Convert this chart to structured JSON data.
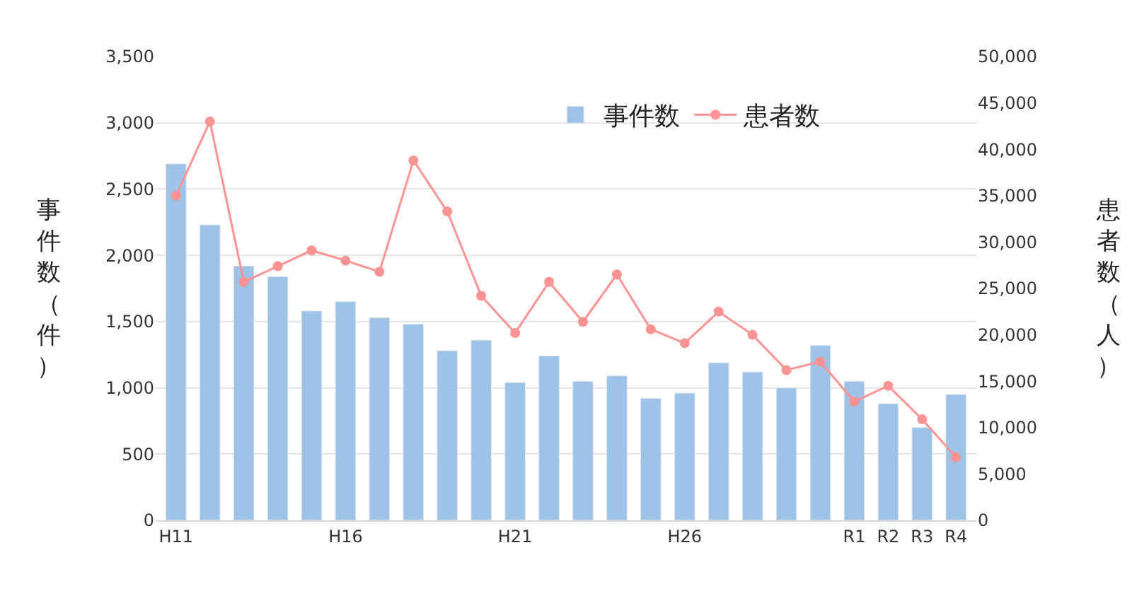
{
  "chart_data": {
    "type": "bar",
    "categories": [
      "H11",
      null,
      null,
      null,
      null,
      "H16",
      null,
      null,
      null,
      null,
      "H21",
      null,
      null,
      null,
      null,
      "H26",
      null,
      null,
      null,
      null,
      "R1",
      "R2",
      "R3",
      "R4"
    ],
    "series": [
      {
        "name": "事件数",
        "color": "#9dc3e6",
        "values": [
          2690,
          2230,
          1920,
          1840,
          1580,
          1650,
          1530,
          1480,
          1280,
          1360,
          1040,
          1240,
          1050,
          1090,
          920,
          960,
          1190,
          1120,
          1000,
          1320,
          1050,
          880,
          700,
          950
        ]
      },
      {
        "name": "患者数",
        "type": "line",
        "axis": "y2",
        "color": "#ff9393",
        "values": [
          35000,
          43000,
          25700,
          27400,
          29100,
          28000,
          26800,
          38800,
          33300,
          24200,
          20200,
          25700,
          21400,
          26500,
          20600,
          19100,
          22500,
          20000,
          16200,
          17100,
          12800,
          14500,
          10900,
          6800
        ]
      }
    ],
    "ylabel": "事件数（件）",
    "y2label": "患者数（人）",
    "ylim": [
      0,
      3500
    ],
    "yticks": [
      {
        "value": 0,
        "label": "0"
      },
      {
        "value": 500,
        "label": "500"
      },
      {
        "value": 1000,
        "label": "1,000"
      },
      {
        "value": 1500,
        "label": "1,500"
      },
      {
        "value": 2000,
        "label": "2,000"
      },
      {
        "value": 2500,
        "label": "2,500"
      },
      {
        "value": 3000,
        "label": "3,000"
      },
      {
        "value": 3500,
        "label": "3,500"
      }
    ],
    "y2lim": [
      0,
      50000
    ],
    "y2ticks": [
      {
        "value": 0,
        "label": "0"
      },
      {
        "value": 5000,
        "label": "5,000"
      },
      {
        "value": 10000,
        "label": "10,000"
      },
      {
        "value": 15000,
        "label": "15,000"
      },
      {
        "value": 20000,
        "label": "20,000"
      },
      {
        "value": 25000,
        "label": "25,000"
      },
      {
        "value": 30000,
        "label": "30,000"
      },
      {
        "value": 35000,
        "label": "35,000"
      },
      {
        "value": 40000,
        "label": "40,000"
      },
      {
        "value": 45000,
        "label": "45,000"
      },
      {
        "value": 50000,
        "label": "50,000"
      }
    ],
    "grid": "y",
    "legend": "top right",
    "marker": "circle",
    "line_style": "solid"
  }
}
